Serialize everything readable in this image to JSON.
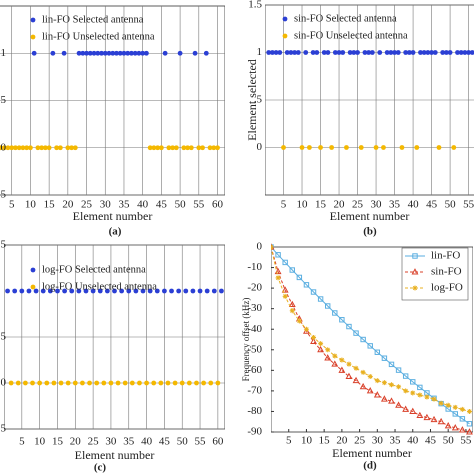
{
  "chart_data": [
    {
      "type": "scatter",
      "label": "(a)",
      "xlabel": "Element number",
      "xlim": [
        0,
        62
      ],
      "xticks": [
        5,
        10,
        15,
        20,
        25,
        30,
        35,
        40,
        45,
        50,
        55,
        60
      ],
      "ylim": [
        -0.5,
        1.5
      ],
      "yticks": [
        {
          "value": -0.5,
          "label": ".5"
        },
        0,
        {
          "value": 0.5,
          "label": ".5"
        },
        1
      ],
      "grid": true,
      "legend": "upper left",
      "series": [
        {
          "name": "lin-FO Selected antenna",
          "color": "#2b3fd4",
          "x": [
            11,
            16,
            19,
            23,
            24,
            25,
            26,
            27,
            28,
            29,
            30,
            31,
            32,
            33,
            34,
            35,
            36,
            37,
            38,
            39,
            40,
            41,
            46,
            50,
            54,
            57
          ],
          "values": [
            1,
            1,
            1,
            1,
            1,
            1,
            1,
            1,
            1,
            1,
            1,
            1,
            1,
            1,
            1,
            1,
            1,
            1,
            1,
            1,
            1,
            1,
            1,
            1,
            1,
            1
          ]
        },
        {
          "name": "lin-FO Unselected antenna",
          "color": "#f4b800",
          "x": [
            1,
            2,
            3,
            4,
            5,
            6,
            7,
            8,
            9,
            10,
            12,
            13,
            14,
            15,
            17,
            18,
            20,
            21,
            22,
            42,
            43,
            44,
            45,
            47,
            48,
            49,
            51,
            52,
            53,
            55,
            56,
            58,
            59,
            60
          ],
          "values": [
            0,
            0,
            0,
            0,
            0,
            0,
            0,
            0,
            0,
            0,
            0,
            0,
            0,
            0,
            0,
            0,
            0,
            0,
            0,
            0,
            0,
            0,
            0,
            0,
            0,
            0,
            0,
            0,
            0,
            0,
            0,
            0,
            0,
            0
          ]
        }
      ]
    },
    {
      "type": "scatter",
      "label": "(b)",
      "xlabel": "Element number",
      "ylabel": "Element selected",
      "xlim": [
        0,
        57
      ],
      "xticks": [
        5,
        10,
        15,
        20,
        25,
        30,
        35,
        40,
        45,
        50,
        55
      ],
      "ylim": [
        -0.5,
        1.5
      ],
      "yticks": [
        0,
        {
          "value": 0.5,
          "label": ".5"
        },
        1,
        1.5
      ],
      "grid": true,
      "legend": "upper left",
      "series": [
        {
          "name": "sin-FO Selected antenna",
          "color": "#2b3fd4",
          "x": [
            1,
            2,
            3,
            4,
            6,
            7,
            8,
            9,
            11,
            13,
            14,
            16,
            17,
            19,
            20,
            21,
            23,
            24,
            25,
            27,
            28,
            29,
            31,
            33,
            34,
            35,
            36,
            38,
            39,
            40,
            42,
            43,
            44,
            45,
            46,
            48,
            49,
            50,
            52,
            53,
            54,
            55,
            56,
            57
          ],
          "values": [
            1,
            1,
            1,
            1,
            1,
            1,
            1,
            1,
            1,
            1,
            1,
            1,
            1,
            1,
            1,
            1,
            1,
            1,
            1,
            1,
            1,
            1,
            1,
            1,
            1,
            1,
            1,
            1,
            1,
            1,
            1,
            1,
            1,
            1,
            1,
            1,
            1,
            1,
            1,
            1,
            1,
            1,
            1,
            1
          ]
        },
        {
          "name": "sin-FO Unselected antenna",
          "color": "#f4b800",
          "x": [
            5,
            10,
            12,
            15,
            18,
            22,
            26,
            30,
            32,
            37,
            41,
            47,
            51
          ],
          "values": [
            0,
            0,
            0,
            0,
            0,
            0,
            0,
            0,
            0,
            0,
            0,
            0,
            0
          ]
        }
      ]
    },
    {
      "type": "scatter",
      "label": "(c)",
      "xlabel": "Element number",
      "xlim": [
        0,
        62
      ],
      "xticks": [
        5,
        10,
        15,
        20,
        25,
        30,
        35,
        40,
        45,
        50,
        55,
        60
      ],
      "ylim": [
        -0.5,
        1.5
      ],
      "yticks": [
        {
          "value": -0.5,
          "label": "5"
        },
        0,
        {
          "value": 0.5,
          "label": ".5"
        },
        {
          "value": 1.5,
          "label": "5"
        }
      ],
      "grid": true,
      "legend": "upper left",
      "series": [
        {
          "name": "log-FO Selected antenna",
          "color": "#2b3fd4",
          "x": [
            1,
            3,
            5,
            7,
            9,
            11,
            13,
            15,
            17,
            19,
            21,
            23,
            25,
            27,
            29,
            31,
            33,
            35,
            37,
            39,
            41,
            43,
            45,
            47,
            49,
            51,
            53,
            55,
            57,
            59,
            61
          ],
          "values": [
            1,
            1,
            1,
            1,
            1,
            1,
            1,
            1,
            1,
            1,
            1,
            1,
            1,
            1,
            1,
            1,
            1,
            1,
            1,
            1,
            1,
            1,
            1,
            1,
            1,
            1,
            1,
            1,
            1,
            1,
            1
          ]
        },
        {
          "name": "log-FO Unselected antenna",
          "color": "#f4b800",
          "x": [
            2,
            4,
            6,
            8,
            10,
            12,
            14,
            16,
            18,
            20,
            22,
            24,
            26,
            28,
            30,
            32,
            34,
            36,
            38,
            40,
            42,
            44,
            46,
            48,
            50,
            52,
            54,
            56,
            58,
            60
          ],
          "values": [
            0,
            0,
            0,
            0,
            0,
            0,
            0,
            0,
            0,
            0,
            0,
            0,
            0,
            0,
            0,
            0,
            0,
            0,
            0,
            0,
            0,
            0,
            0,
            0,
            0,
            0,
            0,
            0,
            0,
            0
          ]
        }
      ]
    },
    {
      "type": "line",
      "label": "(d)",
      "xlabel": "Element number",
      "ylabel": "Frequency offset (kHz)",
      "xlim": [
        0,
        57
      ],
      "xticks": [
        5,
        10,
        15,
        20,
        25,
        30,
        35,
        40,
        45,
        50,
        55
      ],
      "ylim": [
        -90,
        0
      ],
      "yticks": [
        0,
        -10,
        -20,
        -30,
        -40,
        -50,
        -60,
        -70,
        -80,
        -90
      ],
      "grid": false,
      "legend": "upper right",
      "x": [
        0,
        2,
        4,
        6,
        8,
        10,
        12,
        14,
        16,
        18,
        20,
        22,
        24,
        26,
        28,
        30,
        32,
        34,
        36,
        38,
        40,
        42,
        44,
        46,
        48,
        50,
        52,
        54,
        56
      ],
      "series": [
        {
          "name": "lin-FO",
          "color": "#5aaee0",
          "marker": "square",
          "values": [
            0,
            -3.8,
            -7.5,
            -11.2,
            -14.8,
            -18.4,
            -21.9,
            -25.3,
            -28.7,
            -32.1,
            -35.4,
            -38.7,
            -41.9,
            -45,
            -48.1,
            -51.2,
            -54.1,
            -57.1,
            -59.9,
            -62.8,
            -65.6,
            -68.3,
            -71,
            -73.6,
            -76.2,
            -78.8,
            -81.2,
            -83.6,
            -86
          ]
        },
        {
          "name": "sin-FO",
          "color": "#d9402a",
          "marker": "triangle",
          "values": [
            0,
            -12,
            -21,
            -28,
            -35,
            -41,
            -46,
            -50,
            -54,
            -57,
            -60,
            -63,
            -65,
            -68,
            -70,
            -72,
            -74,
            -75,
            -77,
            -79,
            -80,
            -82,
            -83,
            -84,
            -85,
            -87,
            -88,
            -89,
            -90
          ]
        },
        {
          "name": "log-FO",
          "color": "#e8b020",
          "marker": "star",
          "values": [
            0,
            -15,
            -24,
            -31,
            -36,
            -40,
            -44,
            -47,
            -50,
            -53,
            -55,
            -57,
            -59,
            -61,
            -63,
            -65,
            -66,
            -67,
            -68,
            -70,
            -71,
            -72,
            -73,
            -74,
            -76,
            -77,
            -78,
            -79,
            -80
          ]
        }
      ]
    }
  ]
}
